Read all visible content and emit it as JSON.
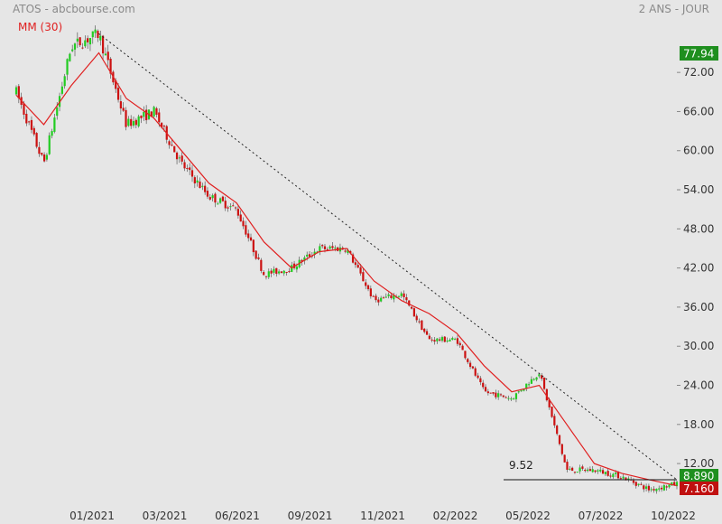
{
  "header": {
    "title": "ATOS - abcbourse.com",
    "period": "2 ANS - JOUR",
    "ma_legend": "MM (30)"
  },
  "colors": {
    "background": "#e6e6e6",
    "bull": "#22cc22",
    "bear": "#cc1111",
    "ma": "#e02020",
    "text": "#333333",
    "muted": "#8a8a8a",
    "high_badge": "#1f8f1f",
    "current_badge": "#1f8f1f",
    "low_badge": "#c01010"
  },
  "chart_data": {
    "type": "candlestick",
    "ylim": [
      5.5,
      82
    ],
    "y_ticks": [
      "72.00",
      "66.00",
      "60.00",
      "54.00",
      "48.00",
      "42.00",
      "36.00",
      "30.00",
      "24.00",
      "18.00",
      "12.00"
    ],
    "x_labels": [
      "01/2021",
      "03/2021",
      "06/2021",
      "09/2021",
      "11/2021",
      "02/2022",
      "05/2022",
      "07/2022",
      "10/2022"
    ],
    "series": [
      {
        "name": "MM (30)",
        "x": [
          "2020-10",
          "2020-11",
          "2020-12",
          "2021-01",
          "2021-02",
          "2021-03",
          "2021-04",
          "2021-05",
          "2021-06",
          "2021-07",
          "2021-08",
          "2021-09",
          "2021-10",
          "2021-11",
          "2021-12",
          "2022-01",
          "2022-02",
          "2022-03",
          "2022-04",
          "2022-05",
          "2022-06",
          "2022-07",
          "2022-08",
          "2022-09",
          "2022-10"
        ],
        "values": [
          68.5,
          64,
          70,
          75,
          68,
          65,
          60,
          55,
          52,
          46,
          42,
          44.5,
          45,
          40,
          37,
          35,
          32,
          27,
          23,
          24,
          18,
          12,
          10.5,
          9.5,
          8.6
        ]
      }
    ],
    "price_path": {
      "x": [
        "2020-10",
        "2020-11",
        "2020-12",
        "2021-01",
        "2021-02",
        "2021-03",
        "2021-04",
        "2021-05",
        "2021-06",
        "2021-07",
        "2021-08",
        "2021-09",
        "2021-10",
        "2021-11",
        "2021-12",
        "2022-01",
        "2022-02",
        "2022-03",
        "2022-04",
        "2022-05",
        "2022-06",
        "2022-07",
        "2022-08",
        "2022-09",
        "2022-10"
      ],
      "values": [
        69,
        58,
        76,
        77.9,
        64,
        66,
        58,
        53,
        51,
        41,
        42,
        45,
        45,
        37,
        38,
        31,
        31,
        23,
        22,
        26,
        11,
        11,
        10,
        8,
        8.9
      ]
    },
    "trendline": {
      "from": [
        "2021-01",
        77.94
      ],
      "to": [
        "2022-10",
        9.52
      ]
    },
    "hline": {
      "value": 9.52,
      "label": "9.52"
    },
    "badges": {
      "high": "77.94",
      "current": "8.890",
      "low": "7.160"
    },
    "grid": false,
    "legend": "top-left"
  }
}
